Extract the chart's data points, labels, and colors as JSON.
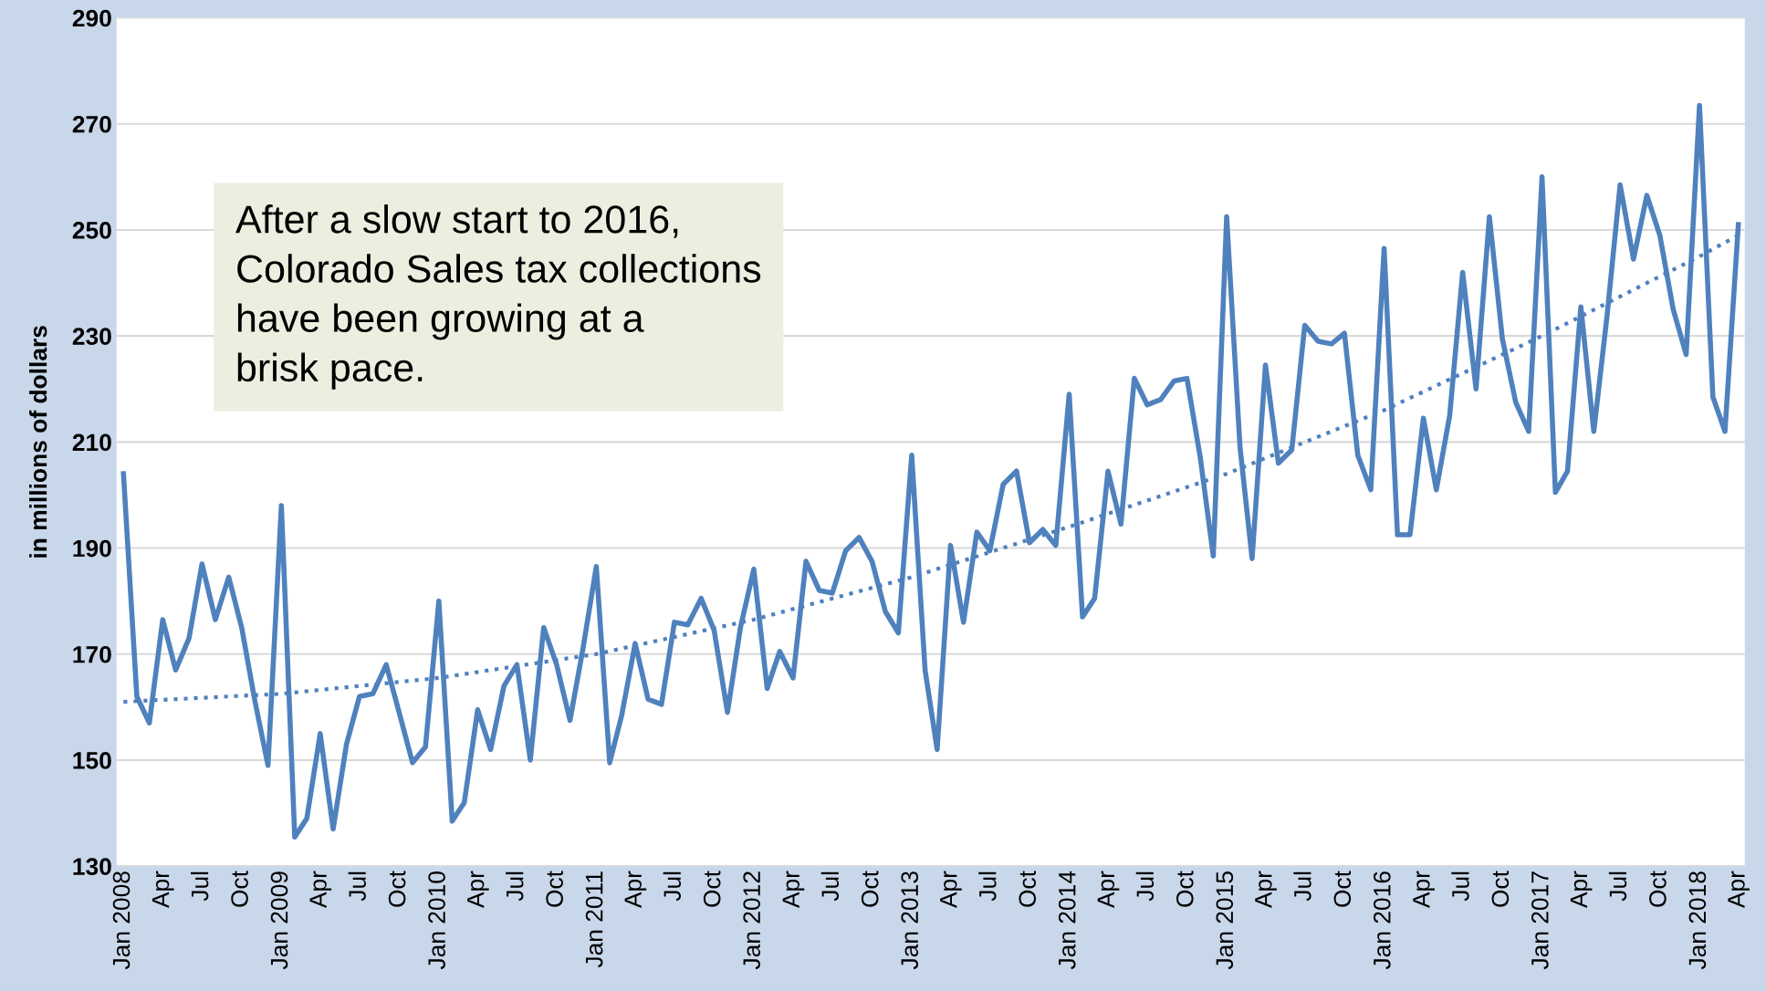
{
  "chart_data": {
    "type": "line",
    "ylabel": "in millions of dollars",
    "annotations": [
      "After a slow start to 2016,\nColorado Sales tax collections\nhave been growing at a\nbrisk pace."
    ],
    "x": [
      "2008-01",
      "2008-02",
      "2008-03",
      "2008-04",
      "2008-05",
      "2008-06",
      "2008-07",
      "2008-08",
      "2008-09",
      "2008-10",
      "2008-11",
      "2008-12",
      "2009-01",
      "2009-02",
      "2009-03",
      "2009-04",
      "2009-05",
      "2009-06",
      "2009-07",
      "2009-08",
      "2009-09",
      "2009-10",
      "2009-11",
      "2009-12",
      "2010-01",
      "2010-02",
      "2010-03",
      "2010-04",
      "2010-05",
      "2010-06",
      "2010-07",
      "2010-08",
      "2010-09",
      "2010-10",
      "2010-11",
      "2010-12",
      "2011-01",
      "2011-02",
      "2011-03",
      "2011-04",
      "2011-05",
      "2011-06",
      "2011-07",
      "2011-08",
      "2011-09",
      "2011-10",
      "2011-11",
      "2011-12",
      "2012-01",
      "2012-02",
      "2012-03",
      "2012-04",
      "2012-05",
      "2012-06",
      "2012-07",
      "2012-08",
      "2012-09",
      "2012-10",
      "2012-11",
      "2012-12",
      "2013-01",
      "2013-02",
      "2013-03",
      "2013-04",
      "2013-05",
      "2013-06",
      "2013-07",
      "2013-08",
      "2013-09",
      "2013-10",
      "2013-11",
      "2013-12",
      "2014-01",
      "2014-02",
      "2014-03",
      "2014-04",
      "2014-05",
      "2014-06",
      "2014-07",
      "2014-08",
      "2014-09",
      "2014-10",
      "2014-11",
      "2014-12",
      "2015-01",
      "2015-02",
      "2015-03",
      "2015-04",
      "2015-05",
      "2015-06",
      "2015-07",
      "2015-08",
      "2015-09",
      "2015-10",
      "2015-11",
      "2015-12",
      "2016-01",
      "2016-02",
      "2016-03",
      "2016-04",
      "2016-05",
      "2016-06",
      "2016-07",
      "2016-08",
      "2016-09",
      "2016-10",
      "2016-11",
      "2016-12",
      "2017-01",
      "2017-02",
      "2017-03",
      "2017-04",
      "2017-05",
      "2017-06",
      "2017-07",
      "2017-08",
      "2017-09",
      "2017-10",
      "2017-11",
      "2017-12",
      "2018-01",
      "2018-02",
      "2018-03",
      "2018-04"
    ],
    "series": [
      {
        "color": "#4f81bd",
        "line_style": "solid",
        "values": [
          204,
          162,
          157,
          176.5,
          167,
          173,
          187,
          176.5,
          184.5,
          175,
          161,
          149,
          198,
          135.5,
          139,
          155,
          137,
          153,
          162,
          162.5,
          168,
          159,
          149.5,
          152.5,
          180,
          138.5,
          142,
          159.5,
          152,
          164,
          168,
          150,
          175,
          168,
          157.5,
          171,
          186.5,
          149.5,
          158.5,
          172,
          161.5,
          160.5,
          176,
          175.5,
          180.5,
          174.5,
          159,
          175,
          186,
          163.5,
          170.5,
          165.5,
          187.5,
          182,
          181.5,
          189.5,
          192,
          187.5,
          178,
          174,
          207.5,
          167,
          152,
          190.5,
          176,
          193,
          189.5,
          202,
          204.5,
          191,
          193.5,
          190.5,
          219,
          177,
          180.5,
          204.5,
          194.5,
          222,
          217,
          218,
          221.5,
          222,
          207,
          188.5,
          252.5,
          209,
          188,
          224.5,
          206,
          208.5,
          232,
          229,
          228.5,
          230.5,
          207.5,
          201,
          246.5,
          192.5,
          192.5,
          214.5,
          201,
          215,
          242,
          220,
          252.5,
          229.5,
          217.5,
          212,
          260,
          200.5,
          204.5,
          235.5,
          212,
          234,
          258.5,
          244.5,
          256.5,
          249,
          235,
          226.5,
          273.5,
          218.5,
          212,
          251
        ]
      },
      {
        "color": "#4f81bd",
        "line_style": "dotted",
        "x": [
          "2008-01",
          "2009-01",
          "2010-01",
          "2011-01",
          "2012-01",
          "2013-01",
          "2014-01",
          "2015-01",
          "2016-01",
          "2017-01",
          "2018-01",
          "2018-04"
        ],
        "values": [
          161,
          162.5,
          165.5,
          170,
          176.5,
          184.5,
          194,
          204,
          216,
          230,
          245,
          249
        ]
      }
    ],
    "xlim": [
      "2007-12-16",
      "2018-04-16"
    ],
    "xticks": [
      {
        "value": "2008-01",
        "label": "Jan 2008"
      },
      {
        "value": "2008-04",
        "label": "Apr"
      },
      {
        "value": "2008-07",
        "label": "Jul"
      },
      {
        "value": "2008-10",
        "label": "Oct"
      },
      {
        "value": "2009-01",
        "label": "Jan 2009"
      },
      {
        "value": "2009-04",
        "label": "Apr"
      },
      {
        "value": "2009-07",
        "label": "Jul"
      },
      {
        "value": "2009-10",
        "label": "Oct"
      },
      {
        "value": "2010-01",
        "label": "Jan 2010"
      },
      {
        "value": "2010-04",
        "label": "Apr"
      },
      {
        "value": "2010-07",
        "label": "Jul"
      },
      {
        "value": "2010-10",
        "label": "Oct"
      },
      {
        "value": "2011-01",
        "label": "Jan 2011"
      },
      {
        "value": "2011-04",
        "label": "Apr"
      },
      {
        "value": "2011-07",
        "label": "Jul"
      },
      {
        "value": "2011-10",
        "label": "Oct"
      },
      {
        "value": "2012-01",
        "label": "Jan 2012"
      },
      {
        "value": "2012-04",
        "label": "Apr"
      },
      {
        "value": "2012-07",
        "label": "Jul"
      },
      {
        "value": "2012-10",
        "label": "Oct"
      },
      {
        "value": "2013-01",
        "label": "Jan 2013"
      },
      {
        "value": "2013-04",
        "label": "Apr"
      },
      {
        "value": "2013-07",
        "label": "Jul"
      },
      {
        "value": "2013-10",
        "label": "Oct"
      },
      {
        "value": "2014-01",
        "label": "Jan 2014"
      },
      {
        "value": "2014-04",
        "label": "Apr"
      },
      {
        "value": "2014-07",
        "label": "Jul"
      },
      {
        "value": "2014-10",
        "label": "Oct"
      },
      {
        "value": "2015-01",
        "label": "Jan 2015"
      },
      {
        "value": "2015-04",
        "label": "Apr"
      },
      {
        "value": "2015-07",
        "label": "Jul"
      },
      {
        "value": "2015-10",
        "label": "Oct"
      },
      {
        "value": "2016-01",
        "label": "Jan 2016"
      },
      {
        "value": "2016-04",
        "label": "Apr"
      },
      {
        "value": "2016-07",
        "label": "Jul"
      },
      {
        "value": "2016-10",
        "label": "Oct"
      },
      {
        "value": "2017-01",
        "label": "Jan 2017"
      },
      {
        "value": "2017-04",
        "label": "Apr"
      },
      {
        "value": "2017-07",
        "label": "Jul"
      },
      {
        "value": "2017-10",
        "label": "Oct"
      },
      {
        "value": "2018-01",
        "label": "Jan 2018"
      },
      {
        "value": "2018-04",
        "label": "Apr"
      }
    ],
    "ylim": [
      130,
      290
    ],
    "yticks": [
      130,
      150,
      170,
      190,
      210,
      230,
      250,
      270,
      290
    ],
    "grid": "y",
    "legend": false,
    "marker": "none"
  }
}
